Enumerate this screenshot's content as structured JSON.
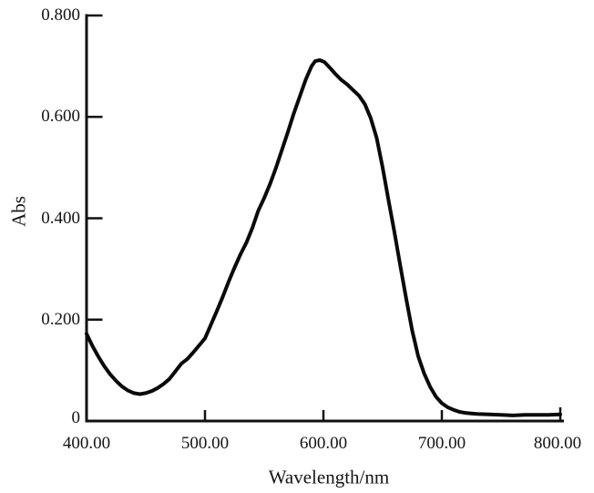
{
  "page": {
    "background": "#ffffff",
    "text_color": "#141414"
  },
  "chart_data": {
    "type": "line",
    "title": "",
    "xlabel": "Wavelength/nm",
    "ylabel": "Abs",
    "xlim": [
      400,
      800
    ],
    "ylim": [
      0,
      0.8
    ],
    "x_ticks": [
      400,
      500,
      600,
      700,
      800
    ],
    "x_tick_labels": [
      "400.00",
      "500.00",
      "600.00",
      "700.00",
      "800.00"
    ],
    "y_ticks": [
      0,
      0.2,
      0.4,
      0.6,
      0.8
    ],
    "y_tick_labels": [
      "0",
      "0.200",
      "0.400",
      "0.600",
      "0.800"
    ],
    "grid": false,
    "legend": null,
    "axis_color": "#111111",
    "line_color": "#0a0a0a",
    "line_width": 4,
    "series": [
      {
        "name": "absorbance-spectrum",
        "x": [
          400,
          405,
          410,
          415,
          420,
          425,
          430,
          435,
          440,
          445,
          450,
          455,
          460,
          465,
          470,
          475,
          480,
          485,
          490,
          495,
          500,
          505,
          510,
          515,
          520,
          525,
          530,
          535,
          540,
          545,
          550,
          555,
          560,
          565,
          570,
          575,
          580,
          585,
          590,
          593,
          597,
          601,
          605,
          610,
          615,
          620,
          625,
          630,
          635,
          640,
          645,
          650,
          655,
          660,
          665,
          670,
          675,
          680,
          685,
          690,
          695,
          700,
          705,
          710,
          715,
          720,
          725,
          730,
          740,
          750,
          760,
          770,
          780,
          790,
          800
        ],
        "y": [
          0.172,
          0.148,
          0.127,
          0.108,
          0.092,
          0.079,
          0.068,
          0.06,
          0.055,
          0.053,
          0.055,
          0.059,
          0.065,
          0.073,
          0.083,
          0.098,
          0.113,
          0.122,
          0.135,
          0.149,
          0.163,
          0.19,
          0.217,
          0.245,
          0.275,
          0.303,
          0.329,
          0.352,
          0.381,
          0.415,
          0.44,
          0.468,
          0.5,
          0.535,
          0.57,
          0.607,
          0.64,
          0.673,
          0.7,
          0.71,
          0.712,
          0.708,
          0.698,
          0.685,
          0.673,
          0.664,
          0.653,
          0.642,
          0.625,
          0.597,
          0.558,
          0.5,
          0.435,
          0.372,
          0.305,
          0.24,
          0.178,
          0.128,
          0.094,
          0.068,
          0.048,
          0.035,
          0.027,
          0.022,
          0.018,
          0.016,
          0.015,
          0.014,
          0.013,
          0.012,
          0.011,
          0.012,
          0.012,
          0.012,
          0.013
        ]
      }
    ]
  }
}
